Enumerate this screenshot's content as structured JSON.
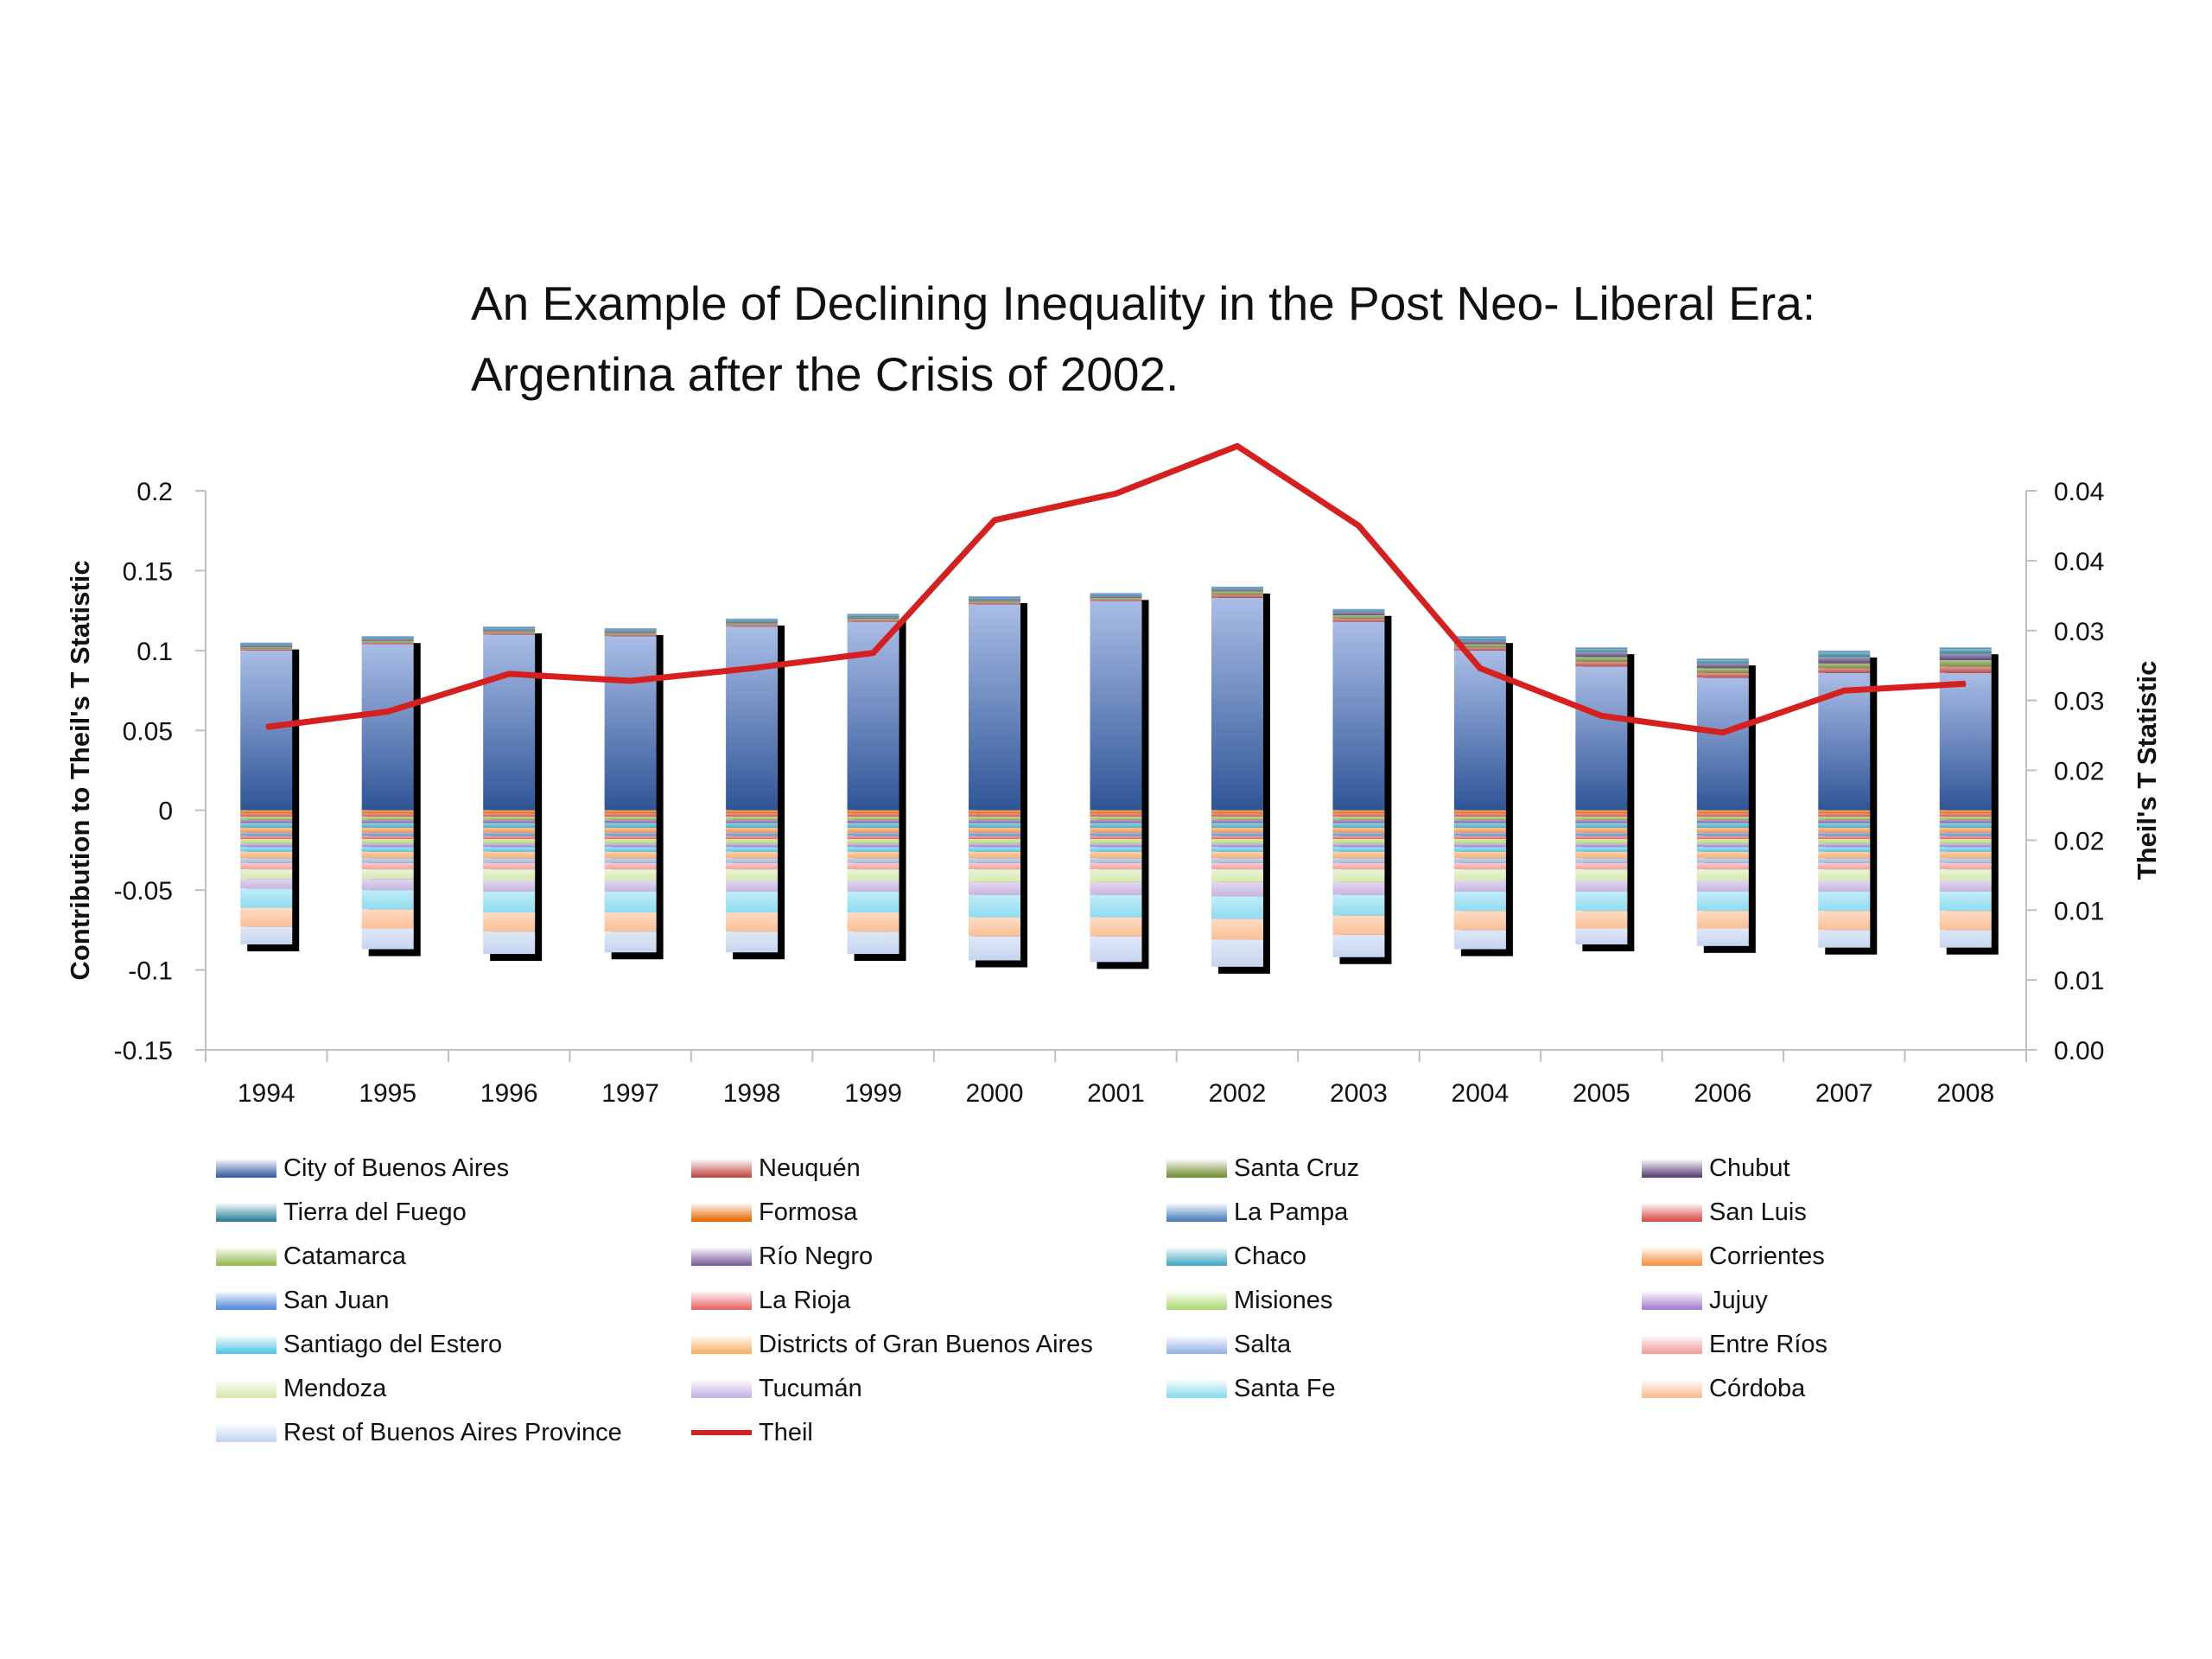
{
  "title": {
    "line1": "An Example of Declining Inequality in the Post Neo- Liberal Era:",
    "line2": "Argentina after the Crisis of 2002."
  },
  "chart_data": {
    "type": "bar",
    "stacked": true,
    "categories": [
      "1994",
      "1995",
      "1996",
      "1997",
      "1998",
      "1999",
      "2000",
      "2001",
      "2002",
      "2003",
      "2004",
      "2005",
      "2006",
      "2007",
      "2008"
    ],
    "ylabel": "Contribution to Theil's T Statistic",
    "y2label": "Theil's T Statistic",
    "ylim": [
      -0.15,
      0.2
    ],
    "yticks": [
      "0.2",
      "0.15",
      "0.1",
      "0.05",
      "0",
      "-0.05",
      "-0.1",
      "-0.15"
    ],
    "y2lim": [
      0,
      0.04
    ],
    "y2ticks": [
      "0.04",
      "0.04",
      "0.03",
      "0.03",
      "0.02",
      "0.02",
      "0.01",
      "0.01",
      "0.00"
    ],
    "legend_position": "bottom",
    "series": [
      {
        "name": "City of Buenos Aires",
        "color": "#3f63a6",
        "values": [
          0.1,
          0.104,
          0.11,
          0.109,
          0.115,
          0.118,
          0.129,
          0.131,
          0.133,
          0.118,
          0.1,
          0.09,
          0.083,
          0.086,
          0.086
        ]
      },
      {
        "name": "Neuquén",
        "color": "#c0504d",
        "values": [
          0.001,
          0.001,
          0.001,
          0.001,
          0.001,
          0.001,
          0.001,
          0.001,
          0.002,
          0.002,
          0.002,
          0.003,
          0.003,
          0.003,
          0.004
        ]
      },
      {
        "name": "Santa Cruz",
        "color": "#77933c",
        "values": [
          0.001,
          0.001,
          0.001,
          0.001,
          0.001,
          0.001,
          0.001,
          0.001,
          0.002,
          0.002,
          0.002,
          0.003,
          0.003,
          0.003,
          0.004
        ]
      },
      {
        "name": "Chubut",
        "color": "#604a7b",
        "values": [
          0.001,
          0.001,
          0.001,
          0.001,
          0.001,
          0.001,
          0.001,
          0.001,
          0.001,
          0.002,
          0.002,
          0.003,
          0.003,
          0.004,
          0.004
        ]
      },
      {
        "name": "Tierra del Fuego",
        "color": "#31859c",
        "values": [
          0.001,
          0.001,
          0.001,
          0.001,
          0.001,
          0.001,
          0.001,
          0.001,
          0.001,
          0.001,
          0.002,
          0.002,
          0.002,
          0.003,
          0.003
        ]
      },
      {
        "name": "Formosa",
        "color": "#e46c0a",
        "values": [
          -0.002,
          -0.002,
          -0.002,
          -0.002,
          -0.002,
          -0.002,
          -0.002,
          -0.002,
          -0.002,
          -0.002,
          -0.002,
          -0.002,
          -0.002,
          -0.002,
          -0.002
        ]
      },
      {
        "name": "La Pampa",
        "color": "#4f81bd",
        "values": [
          0.001,
          0.001,
          0.001,
          0.001,
          0.001,
          0.001,
          0.001,
          0.001,
          0.001,
          0.001,
          0.001,
          0.001,
          0.001,
          0.001,
          0.001
        ]
      },
      {
        "name": "San Luis",
        "color": "#d9534f",
        "values": [
          -0.002,
          -0.002,
          -0.002,
          -0.002,
          -0.002,
          -0.002,
          -0.002,
          -0.002,
          -0.002,
          -0.002,
          -0.002,
          -0.002,
          -0.002,
          -0.002,
          -0.002
        ]
      },
      {
        "name": "Catamarca",
        "color": "#9bbb59",
        "values": [
          -0.002,
          -0.002,
          -0.002,
          -0.002,
          -0.002,
          -0.002,
          -0.002,
          -0.002,
          -0.002,
          -0.002,
          -0.002,
          -0.002,
          -0.002,
          -0.002,
          -0.002
        ]
      },
      {
        "name": "Río Negro",
        "color": "#8064a2",
        "values": [
          -0.002,
          -0.002,
          -0.002,
          -0.002,
          -0.002,
          -0.002,
          -0.002,
          -0.002,
          -0.002,
          -0.002,
          -0.002,
          -0.002,
          -0.002,
          -0.002,
          -0.002
        ]
      },
      {
        "name": "Chaco",
        "color": "#4bacc6",
        "values": [
          -0.003,
          -0.003,
          -0.003,
          -0.003,
          -0.003,
          -0.003,
          -0.003,
          -0.003,
          -0.003,
          -0.003,
          -0.003,
          -0.003,
          -0.003,
          -0.003,
          -0.003
        ]
      },
      {
        "name": "Corrientes",
        "color": "#f79646",
        "values": [
          -0.003,
          -0.003,
          -0.003,
          -0.003,
          -0.003,
          -0.003,
          -0.003,
          -0.003,
          -0.003,
          -0.003,
          -0.003,
          -0.003,
          -0.003,
          -0.003,
          -0.003
        ]
      },
      {
        "name": "San Juan",
        "color": "#5b8fd9",
        "values": [
          -0.002,
          -0.002,
          -0.002,
          -0.002,
          -0.002,
          -0.002,
          -0.002,
          -0.002,
          -0.002,
          -0.002,
          -0.002,
          -0.002,
          -0.002,
          -0.002,
          -0.002
        ]
      },
      {
        "name": "La Rioja",
        "color": "#e86a6a",
        "values": [
          -0.002,
          -0.002,
          -0.002,
          -0.002,
          -0.002,
          -0.002,
          -0.002,
          -0.002,
          -0.002,
          -0.002,
          -0.002,
          -0.002,
          -0.002,
          -0.002,
          -0.002
        ]
      },
      {
        "name": "Misiones",
        "color": "#b3d97a",
        "values": [
          -0.003,
          -0.003,
          -0.003,
          -0.003,
          -0.003,
          -0.003,
          -0.003,
          -0.003,
          -0.003,
          -0.003,
          -0.003,
          -0.003,
          -0.003,
          -0.003,
          -0.003
        ]
      },
      {
        "name": "Jujuy",
        "color": "#a684d1",
        "values": [
          -0.002,
          -0.002,
          -0.002,
          -0.002,
          -0.002,
          -0.002,
          -0.002,
          -0.002,
          -0.002,
          -0.002,
          -0.002,
          -0.002,
          -0.002,
          -0.002,
          -0.002
        ]
      },
      {
        "name": "Santiago del Estero",
        "color": "#5bc8e8",
        "values": [
          -0.003,
          -0.003,
          -0.003,
          -0.003,
          -0.003,
          -0.003,
          -0.003,
          -0.003,
          -0.003,
          -0.003,
          -0.003,
          -0.003,
          -0.003,
          -0.003,
          -0.003
        ]
      },
      {
        "name": "Districts of Gran Buenos Aires",
        "color": "#fab06a",
        "values": [
          -0.004,
          -0.004,
          -0.004,
          -0.004,
          -0.004,
          -0.004,
          -0.004,
          -0.004,
          -0.004,
          -0.004,
          -0.004,
          -0.004,
          -0.004,
          -0.004,
          -0.004
        ]
      },
      {
        "name": "Salta",
        "color": "#9cb7e6",
        "values": [
          -0.003,
          -0.003,
          -0.003,
          -0.003,
          -0.003,
          -0.003,
          -0.003,
          -0.003,
          -0.003,
          -0.003,
          -0.003,
          -0.003,
          -0.003,
          -0.003,
          -0.003
        ]
      },
      {
        "name": "Entre Ríos",
        "color": "#f2a2a2",
        "values": [
          -0.004,
          -0.004,
          -0.004,
          -0.004,
          -0.004,
          -0.004,
          -0.004,
          -0.004,
          -0.004,
          -0.004,
          -0.004,
          -0.004,
          -0.004,
          -0.004,
          -0.004
        ]
      },
      {
        "name": "Mendoza",
        "color": "#d6eab0",
        "values": [
          -0.006,
          -0.006,
          -0.007,
          -0.007,
          -0.007,
          -0.007,
          -0.008,
          -0.008,
          -0.008,
          -0.008,
          -0.007,
          -0.007,
          -0.007,
          -0.007,
          -0.007
        ]
      },
      {
        "name": "Tucumán",
        "color": "#c8b5e3",
        "values": [
          -0.006,
          -0.007,
          -0.007,
          -0.007,
          -0.007,
          -0.007,
          -0.008,
          -0.008,
          -0.009,
          -0.008,
          -0.007,
          -0.007,
          -0.007,
          -0.007,
          -0.007
        ]
      },
      {
        "name": "Santa Fe",
        "color": "#8fdcf0",
        "values": [
          -0.012,
          -0.012,
          -0.013,
          -0.013,
          -0.013,
          -0.013,
          -0.014,
          -0.014,
          -0.014,
          -0.013,
          -0.012,
          -0.012,
          -0.012,
          -0.012,
          -0.012
        ]
      },
      {
        "name": "Córdoba",
        "color": "#fbbf95",
        "values": [
          -0.012,
          -0.012,
          -0.012,
          -0.012,
          -0.012,
          -0.012,
          -0.012,
          -0.012,
          -0.013,
          -0.012,
          -0.012,
          -0.011,
          -0.011,
          -0.012,
          -0.012
        ]
      },
      {
        "name": "Rest of Buenos Aires Province",
        "color": "#c5d5f0",
        "values": [
          -0.011,
          -0.013,
          -0.014,
          -0.013,
          -0.013,
          -0.014,
          -0.015,
          -0.016,
          -0.017,
          -0.014,
          -0.012,
          -0.01,
          -0.011,
          -0.011,
          -0.011
        ]
      },
      {
        "name": "Theil",
        "color": "#d61f1f",
        "type": "line",
        "axis": "right",
        "values": [
          0.0231,
          0.0242,
          0.0269,
          0.0264,
          0.0273,
          0.0284,
          0.0379,
          0.0398,
          0.0432,
          0.0375,
          0.0273,
          0.0239,
          0.0227,
          0.0257,
          0.0262
        ]
      }
    ]
  },
  "legend": {
    "items": [
      "City of Buenos Aires",
      "Neuquén",
      "Santa Cruz",
      "Chubut",
      "Tierra del Fuego",
      "Formosa",
      "La Pampa",
      "San Luis",
      "Catamarca",
      "Río Negro",
      "Chaco",
      "Corrientes",
      "San Juan",
      "La Rioja",
      "Misiones",
      "Jujuy",
      "Santiago del Estero",
      "Districts of Gran Buenos Aires",
      "Salta",
      "Entre Ríos",
      "Mendoza",
      "Tucumán",
      "Santa Fe",
      "Córdoba",
      "Rest of Buenos Aires Province",
      "Theil"
    ]
  }
}
